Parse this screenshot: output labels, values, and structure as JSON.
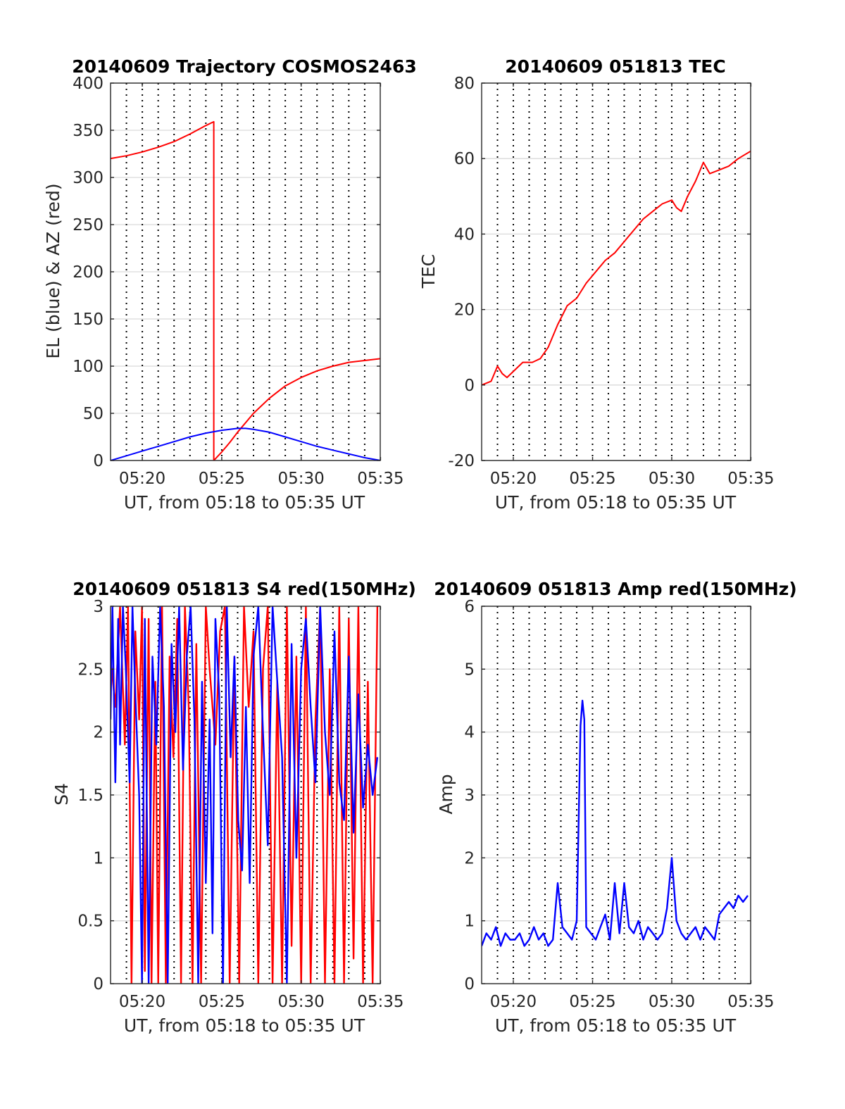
{
  "colors": {
    "red": "#ff0000",
    "blue": "#0000ff",
    "axis": "#262626",
    "grid": "#d9d9d9"
  },
  "chart_data": [
    {
      "id": "trajectory",
      "type": "line",
      "title": "20140609 Trajectory COSMOS2463",
      "xlabel": "UT, from 05:18 to 05:35 UT",
      "ylabel": "EL (blue) & AZ (red)",
      "xlim": [
        5.3,
        5.583
      ],
      "ylim": [
        0,
        400
      ],
      "yticks": [
        0,
        50,
        100,
        150,
        200,
        250,
        300,
        350,
        400
      ],
      "ytick_labels": [
        "0",
        "50",
        "100",
        "150",
        "200",
        "250",
        "300",
        "350",
        "400"
      ],
      "xticks": [
        5.3333,
        5.4167,
        5.5,
        5.5833
      ],
      "xtick_labels": [
        "05:20",
        "05:25",
        "05:30",
        "05:35"
      ],
      "grid": true,
      "series": [
        {
          "name": "AZ (red)",
          "color": "red",
          "x": [
            5.3,
            5.3167,
            5.3333,
            5.35,
            5.3667,
            5.3833,
            5.4,
            5.4083,
            5.4083,
            5.4167,
            5.425,
            5.4333,
            5.45,
            5.4667,
            5.4833,
            5.5,
            5.5167,
            5.5333,
            5.55,
            5.5667,
            5.5833
          ],
          "y": [
            320,
            323,
            327,
            332,
            338,
            346,
            355,
            359,
            0,
            9,
            19,
            30,
            50,
            66,
            79,
            88,
            95,
            100,
            104,
            106,
            108
          ]
        },
        {
          "name": "EL (blue)",
          "color": "blue",
          "x": [
            5.3,
            5.3167,
            5.3333,
            5.35,
            5.3667,
            5.3833,
            5.4,
            5.4167,
            5.4333,
            5.4417,
            5.45,
            5.4667,
            5.4833,
            5.5,
            5.5167,
            5.5333,
            5.55,
            5.5667,
            5.5833
          ],
          "y": [
            0,
            5,
            10,
            15,
            20,
            25,
            29,
            32,
            34,
            34,
            33,
            30,
            25,
            20,
            15,
            11,
            7,
            3,
            0
          ]
        }
      ]
    },
    {
      "id": "tec",
      "type": "line",
      "title": "20140609 051813 TEC",
      "xlabel": "UT, from 05:18 to 05:35 UT",
      "ylabel": "TEC",
      "xlim": [
        5.3,
        5.583
      ],
      "ylim": [
        -20,
        80
      ],
      "yticks": [
        -20,
        0,
        20,
        40,
        60,
        80
      ],
      "ytick_labels": [
        "-20",
        "0",
        "20",
        "40",
        "60",
        "80"
      ],
      "xticks": [
        5.3333,
        5.4167,
        5.5,
        5.5833
      ],
      "xtick_labels": [
        "05:20",
        "05:25",
        "05:30",
        "05:35"
      ],
      "grid": true,
      "series": [
        {
          "name": "TEC",
          "color": "red",
          "x": [
            5.3,
            5.31,
            5.3167,
            5.3217,
            5.3267,
            5.335,
            5.3433,
            5.3533,
            5.3617,
            5.37,
            5.38,
            5.39,
            5.4,
            5.41,
            5.42,
            5.43,
            5.44,
            5.45,
            5.46,
            5.47,
            5.48,
            5.49,
            5.5,
            5.505,
            5.51,
            5.5167,
            5.525,
            5.5333,
            5.54,
            5.55,
            5.56,
            5.57,
            5.5833
          ],
          "y": [
            0,
            1,
            5,
            3,
            2,
            4,
            6,
            6,
            7,
            10,
            16,
            21,
            23,
            27,
            30,
            33,
            35,
            38,
            41,
            44,
            46,
            48,
            49,
            47,
            46,
            50,
            54,
            59,
            56,
            57,
            58,
            60,
            62
          ]
        }
      ]
    },
    {
      "id": "s4",
      "type": "line",
      "title": "20140609 051813 S4 red(150MHz)",
      "xlabel": "UT, from 05:18 to 05:35 UT",
      "ylabel": "S4",
      "xlim": [
        5.3,
        5.583
      ],
      "ylim": [
        0,
        3
      ],
      "yticks": [
        0,
        0.5,
        1,
        1.5,
        2,
        2.5,
        3
      ],
      "ytick_labels": [
        "0",
        "0.5",
        "1",
        "1.5",
        "2",
        "2.5",
        "3"
      ],
      "xticks": [
        5.3333,
        5.4167,
        5.5,
        5.5833
      ],
      "xtick_labels": [
        "05:20",
        "05:25",
        "05:30",
        "05:35"
      ],
      "grid": true,
      "series": [
        {
          "name": "S4 red",
          "color": "red",
          "x": [
            5.3,
            5.305,
            5.31,
            5.315,
            5.3183,
            5.322,
            5.326,
            5.33,
            5.333,
            5.336,
            5.34,
            5.343,
            5.347,
            5.35,
            5.354,
            5.358,
            5.362,
            5.366,
            5.37,
            5.374,
            5.378,
            5.382,
            5.386,
            5.39,
            5.395,
            5.4,
            5.404,
            5.41,
            5.415,
            5.42,
            5.425,
            5.43,
            5.435,
            5.44,
            5.445,
            5.45,
            5.455,
            5.46,
            5.465,
            5.47,
            5.475,
            5.48,
            5.485,
            5.49,
            5.495,
            5.5,
            5.505,
            5.51,
            5.515,
            5.52,
            5.525,
            5.53,
            5.535,
            5.54,
            5.545,
            5.55,
            5.555,
            5.56,
            5.565,
            5.57,
            5.575,
            5.58
          ],
          "y": [
            2.6,
            2.2,
            3.0,
            1.9,
            3.0,
            0,
            2.8,
            2.1,
            3.0,
            0.1,
            2.9,
            0,
            2.4,
            0,
            3.0,
            0,
            2.6,
            1.8,
            2.9,
            0,
            3.0,
            2.2,
            0,
            2.7,
            0,
            3.0,
            2.5,
            1.9,
            2.8,
            3.0,
            0,
            2.6,
            0,
            3.0,
            2.2,
            2.8,
            0,
            2.5,
            3.0,
            0,
            2.4,
            0,
            3.0,
            0.3,
            2.6,
            0,
            3.0,
            0,
            2.1,
            3.0,
            0,
            2.5,
            0,
            3.0,
            0,
            2.9,
            0.2,
            3.0,
            0,
            2.4,
            0,
            3.0
          ]
        },
        {
          "name": "S4 blue",
          "color": "blue",
          "x": [
            5.3,
            5.302,
            5.305,
            5.308,
            5.31,
            5.313,
            5.316,
            5.32,
            5.323,
            5.326,
            5.33,
            5.333,
            5.336,
            5.34,
            5.344,
            5.348,
            5.352,
            5.356,
            5.36,
            5.364,
            5.368,
            5.372,
            5.376,
            5.38,
            5.384,
            5.388,
            5.392,
            5.396,
            5.4,
            5.404,
            5.407,
            5.41,
            5.414,
            5.418,
            5.422,
            5.426,
            5.43,
            5.434,
            5.438,
            5.442,
            5.446,
            5.45,
            5.455,
            5.46,
            5.465,
            5.47,
            5.475,
            5.48,
            5.485,
            5.49,
            5.495,
            5.5,
            5.505,
            5.51,
            5.515,
            5.52,
            5.525,
            5.53,
            5.535,
            5.54,
            5.545,
            5.55,
            5.555,
            5.56,
            5.565,
            5.57,
            5.575,
            5.58
          ],
          "y": [
            2.1,
            3.0,
            1.6,
            2.9,
            1.9,
            3.0,
            2.5,
            1.6,
            3.0,
            2.3,
            1.5,
            0,
            2.9,
            0,
            2.6,
            1.9,
            3.0,
            2.2,
            0,
            2.7,
            2.0,
            3.0,
            1.7,
            2.6,
            3.0,
            2.1,
            0,
            2.4,
            0.8,
            2.1,
            0.4,
            2.9,
            2.3,
            0,
            3.0,
            1.8,
            2.6,
            1.3,
            0.9,
            2.2,
            0.8,
            2.6,
            3.0,
            2.0,
            1.1,
            3.0,
            2.4,
            1.8,
            0,
            2.7,
            1.0,
            2.5,
            2.9,
            2.2,
            1.6,
            3.0,
            2.0,
            1.5,
            2.8,
            1.6,
            1.3,
            2.6,
            1.2,
            2.3,
            1.4,
            1.9,
            1.5,
            1.8
          ]
        }
      ]
    },
    {
      "id": "amp",
      "type": "line",
      "title": "20140609 051813 Amp red(150MHz)",
      "xlabel": "UT, from 05:18 to 05:35 UT",
      "ylabel": "Amp",
      "xlim": [
        5.3,
        5.583
      ],
      "ylim": [
        0,
        6
      ],
      "yticks": [
        0,
        1,
        2,
        3,
        4,
        5,
        6
      ],
      "ytick_labels": [
        "0",
        "1",
        "2",
        "3",
        "4",
        "5",
        "6"
      ],
      "xticks": [
        5.3333,
        5.4167,
        5.5,
        5.5833
      ],
      "xtick_labels": [
        "05:20",
        "05:25",
        "05:30",
        "05:35"
      ],
      "grid": true,
      "series": [
        {
          "name": "Amp",
          "color": "blue",
          "x": [
            5.3,
            5.305,
            5.31,
            5.315,
            5.32,
            5.325,
            5.33,
            5.335,
            5.34,
            5.345,
            5.35,
            5.355,
            5.36,
            5.365,
            5.37,
            5.375,
            5.38,
            5.385,
            5.39,
            5.395,
            5.4,
            5.404,
            5.406,
            5.408,
            5.41,
            5.415,
            5.42,
            5.425,
            5.43,
            5.435,
            5.44,
            5.445,
            5.45,
            5.455,
            5.46,
            5.465,
            5.47,
            5.475,
            5.48,
            5.485,
            5.49,
            5.495,
            5.5,
            5.505,
            5.51,
            5.515,
            5.52,
            5.525,
            5.53,
            5.535,
            5.54,
            5.545,
            5.55,
            5.555,
            5.56,
            5.565,
            5.57,
            5.575,
            5.58
          ],
          "y": [
            0.6,
            0.8,
            0.7,
            0.9,
            0.6,
            0.8,
            0.7,
            0.7,
            0.8,
            0.6,
            0.7,
            0.9,
            0.7,
            0.8,
            0.6,
            0.7,
            1.6,
            0.9,
            0.8,
            0.7,
            1.0,
            4.1,
            4.5,
            4.2,
            0.9,
            0.8,
            0.7,
            0.9,
            1.1,
            0.7,
            1.6,
            0.8,
            1.6,
            0.9,
            0.8,
            1.0,
            0.7,
            0.9,
            0.8,
            0.7,
            0.8,
            1.2,
            2.0,
            1.0,
            0.8,
            0.7,
            0.8,
            0.9,
            0.7,
            0.9,
            0.8,
            0.7,
            1.1,
            1.2,
            1.3,
            1.2,
            1.4,
            1.3,
            1.4
          ]
        }
      ]
    }
  ]
}
